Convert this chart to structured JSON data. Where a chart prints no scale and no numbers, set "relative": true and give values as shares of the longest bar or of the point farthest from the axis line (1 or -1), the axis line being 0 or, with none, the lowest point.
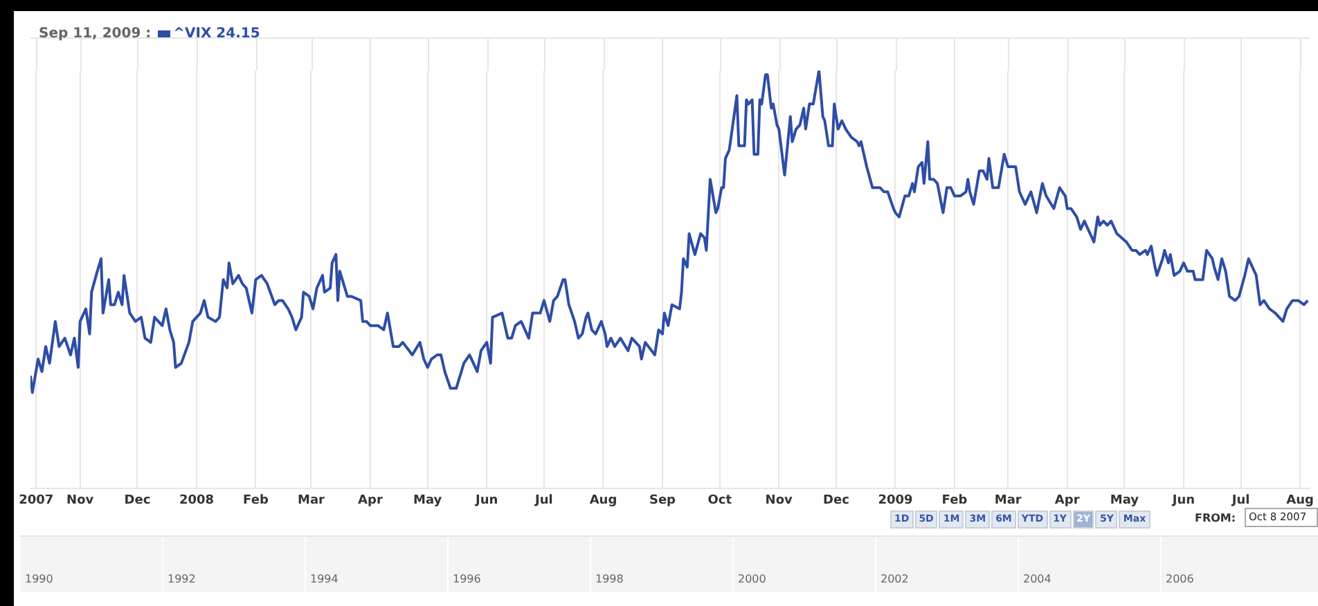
{
  "chart_data": {
    "type": "line",
    "title": "Sep 11, 2009 :",
    "relative": true,
    "grid": "x",
    "legend": "top left",
    "marker": "none",
    "line_style": "solid",
    "xlim": [
      "2007-10-06",
      "2009-08-06"
    ],
    "xticks": [
      {
        "value": "2007-10-09",
        "label": "2007"
      },
      {
        "value": "2007-11-01",
        "label": "Nov"
      },
      {
        "value": "2007-12-01",
        "label": "Dec"
      },
      {
        "value": "2008-01-01",
        "label": "2008"
      },
      {
        "value": "2008-02-01",
        "label": "Feb"
      },
      {
        "value": "2008-03-01",
        "label": "Mar"
      },
      {
        "value": "2008-04-01",
        "label": "Apr"
      },
      {
        "value": "2008-05-01",
        "label": "May"
      },
      {
        "value": "2008-06-01",
        "label": "Jun"
      },
      {
        "value": "2008-07-01",
        "label": "Jul"
      },
      {
        "value": "2008-08-01",
        "label": "Aug"
      },
      {
        "value": "2008-09-01",
        "label": "Sep"
      },
      {
        "value": "2008-10-01",
        "label": "Oct"
      },
      {
        "value": "2008-11-01",
        "label": "Nov"
      },
      {
        "value": "2008-12-01",
        "label": "Dec"
      },
      {
        "value": "2009-01-01",
        "label": "2009"
      },
      {
        "value": "2009-02-01",
        "label": "Feb"
      },
      {
        "value": "2009-03-01",
        "label": "Mar"
      },
      {
        "value": "2009-04-01",
        "label": "Apr"
      },
      {
        "value": "2009-05-01",
        "label": "May"
      },
      {
        "value": "2009-06-01",
        "label": "Jun"
      },
      {
        "value": "2009-07-01",
        "label": "Jul"
      },
      {
        "value": "2009-08-01",
        "label": "Aug"
      }
    ],
    "annotations": [
      "1D",
      "5D",
      "1M",
      "3M",
      "6M",
      "YTD",
      "1Y",
      "2Y",
      "5Y",
      "Max",
      "FROM:",
      "Oct 8 2007",
      "1990",
      "1992",
      "1994",
      "1996",
      "1998",
      "2000",
      "2002",
      "2004",
      "2006"
    ],
    "x": [
      "2007-10-06",
      "2007-10-07",
      "2007-10-10",
      "2007-10-12",
      "2007-10-14",
      "2007-10-16",
      "2007-10-19",
      "2007-10-21",
      "2007-10-24",
      "2007-10-27",
      "2007-10-29",
      "2007-10-31",
      "2007-11-01",
      "2007-11-04",
      "2007-11-06",
      "2007-11-07",
      "2007-11-10",
      "2007-11-12",
      "2007-11-13",
      "2007-11-16",
      "2007-11-17",
      "2007-11-19",
      "2007-11-21",
      "2007-11-23",
      "2007-11-24",
      "2007-11-27",
      "2007-11-30",
      "2007-12-03",
      "2007-12-05",
      "2007-12-08",
      "2007-12-10",
      "2007-12-14",
      "2007-12-16",
      "2007-12-18",
      "2007-12-20",
      "2007-12-21",
      "2007-12-24",
      "2007-12-28",
      "2007-12-30",
      "2008-01-03",
      "2008-01-05",
      "2008-01-07",
      "2008-01-11",
      "2008-01-13",
      "2008-01-15",
      "2008-01-17",
      "2008-01-18",
      "2008-01-20",
      "2008-01-23",
      "2008-01-25",
      "2008-01-27",
      "2008-01-30",
      "2008-02-01",
      "2008-02-04",
      "2008-02-07",
      "2008-02-11",
      "2008-02-13",
      "2008-02-15",
      "2008-02-18",
      "2008-02-20",
      "2008-02-22",
      "2008-02-25",
      "2008-02-26",
      "2008-02-29",
      "2008-03-02",
      "2008-03-04",
      "2008-03-07",
      "2008-03-08",
      "2008-03-11",
      "2008-03-12",
      "2008-03-14",
      "2008-03-15",
      "2008-03-16",
      "2008-03-20",
      "2008-03-22",
      "2008-03-27",
      "2008-03-28",
      "2008-03-30",
      "2008-04-01",
      "2008-04-05",
      "2008-04-08",
      "2008-04-10",
      "2008-04-13",
      "2008-04-16",
      "2008-04-18",
      "2008-04-23",
      "2008-04-27",
      "2008-04-29",
      "2008-05-01",
      "2008-05-03",
      "2008-05-06",
      "2008-05-08",
      "2008-05-10",
      "2008-05-13",
      "2008-05-16",
      "2008-05-20",
      "2008-05-23",
      "2008-05-25",
      "2008-05-27",
      "2008-05-29",
      "2008-06-01",
      "2008-06-03",
      "2008-06-04",
      "2008-06-09",
      "2008-06-12",
      "2008-06-14",
      "2008-06-16",
      "2008-06-19",
      "2008-06-23",
      "2008-06-25",
      "2008-06-29",
      "2008-07-01",
      "2008-07-04",
      "2008-07-06",
      "2008-07-08",
      "2008-07-11",
      "2008-07-12",
      "2008-07-14",
      "2008-07-17",
      "2008-07-19",
      "2008-07-21",
      "2008-07-23",
      "2008-07-24",
      "2008-07-26",
      "2008-07-28",
      "2008-07-30",
      "2008-07-31",
      "2008-08-02",
      "2008-08-03",
      "2008-08-05",
      "2008-08-07",
      "2008-08-10",
      "2008-08-14",
      "2008-08-16",
      "2008-08-20",
      "2008-08-21",
      "2008-08-23",
      "2008-08-28",
      "2008-08-30",
      "2008-09-01",
      "2008-09-02",
      "2008-09-04",
      "2008-09-06",
      "2008-09-10",
      "2008-09-11",
      "2008-09-12",
      "2008-09-14",
      "2008-09-15",
      "2008-09-18",
      "2008-09-21",
      "2008-09-23",
      "2008-09-24",
      "2008-09-26",
      "2008-09-29",
      "2008-09-30",
      "2008-10-02",
      "2008-10-03",
      "2008-10-04",
      "2008-10-06",
      "2008-10-10",
      "2008-10-11",
      "2008-10-14",
      "2008-10-15",
      "2008-10-16",
      "2008-10-18",
      "2008-10-19",
      "2008-10-21",
      "2008-10-22",
      "2008-10-23",
      "2008-10-25",
      "2008-10-26",
      "2008-10-28",
      "2008-10-29",
      "2008-10-31",
      "2008-11-01",
      "2008-11-04",
      "2008-11-07",
      "2008-11-08",
      "2008-11-10",
      "2008-11-12",
      "2008-11-14",
      "2008-11-15",
      "2008-11-17",
      "2008-11-19",
      "2008-11-22",
      "2008-11-24",
      "2008-11-25",
      "2008-11-27",
      "2008-11-29",
      "2008-11-30",
      "2008-12-02",
      "2008-12-04",
      "2008-12-06",
      "2008-12-09",
      "2008-12-12",
      "2008-12-13",
      "2008-12-14",
      "2008-12-17",
      "2008-12-20",
      "2008-12-24",
      "2008-12-26",
      "2008-12-28",
      "2008-12-31",
      "2009-01-01",
      "2009-01-03",
      "2009-01-06",
      "2009-01-08",
      "2009-01-10",
      "2009-01-11",
      "2009-01-13",
      "2009-01-15",
      "2009-01-16",
      "2009-01-18",
      "2009-01-19",
      "2009-01-21",
      "2009-01-23",
      "2009-01-26",
      "2009-01-28",
      "2009-01-30",
      "2009-02-01",
      "2009-02-04",
      "2009-02-07",
      "2009-02-08",
      "2009-02-09",
      "2009-02-11",
      "2009-02-14",
      "2009-02-16",
      "2009-02-18",
      "2009-02-19",
      "2009-02-21",
      "2009-02-24",
      "2009-02-27",
      "2009-03-01",
      "2009-03-03",
      "2009-03-05",
      "2009-03-07",
      "2009-03-10",
      "2009-03-13",
      "2009-03-16",
      "2009-03-19",
      "2009-03-21",
      "2009-03-25",
      "2009-03-28",
      "2009-03-31",
      "2009-04-01",
      "2009-04-03",
      "2009-04-06",
      "2009-04-08",
      "2009-04-10",
      "2009-04-13",
      "2009-04-15",
      "2009-04-17",
      "2009-04-18",
      "2009-04-20",
      "2009-04-22",
      "2009-04-24",
      "2009-04-27",
      "2009-05-02",
      "2009-05-05",
      "2009-05-07",
      "2009-05-09",
      "2009-05-12",
      "2009-05-13",
      "2009-05-15",
      "2009-05-17",
      "2009-05-18",
      "2009-05-21",
      "2009-05-22",
      "2009-05-24",
      "2009-05-25",
      "2009-05-27",
      "2009-05-30",
      "2009-06-01",
      "2009-06-03",
      "2009-06-06",
      "2009-06-07",
      "2009-06-11",
      "2009-06-13",
      "2009-06-16",
      "2009-06-17",
      "2009-06-19",
      "2009-06-21",
      "2009-06-23",
      "2009-06-25",
      "2009-06-28",
      "2009-06-30",
      "2009-07-03",
      "2009-07-05",
      "2009-07-09",
      "2009-07-11",
      "2009-07-13",
      "2009-07-16",
      "2009-07-19",
      "2009-07-23",
      "2009-07-25",
      "2009-07-28",
      "2009-07-31",
      "2009-08-03",
      "2009-08-05"
    ],
    "series": [
      {
        "name": "^VIX 24.15",
        "color": "#2e4da6",
        "values": [
          0.27,
          0.23,
          0.31,
          0.28,
          0.34,
          0.3,
          0.4,
          0.34,
          0.36,
          0.32,
          0.36,
          0.29,
          0.4,
          0.43,
          0.37,
          0.47,
          0.52,
          0.55,
          0.42,
          0.5,
          0.44,
          0.44,
          0.47,
          0.44,
          0.51,
          0.42,
          0.4,
          0.41,
          0.36,
          0.35,
          0.41,
          0.39,
          0.43,
          0.38,
          0.35,
          0.29,
          0.3,
          0.35,
          0.4,
          0.42,
          0.45,
          0.41,
          0.4,
          0.41,
          0.5,
          0.48,
          0.54,
          0.49,
          0.51,
          0.49,
          0.48,
          0.42,
          0.5,
          0.51,
          0.49,
          0.44,
          0.45,
          0.45,
          0.43,
          0.41,
          0.38,
          0.41,
          0.47,
          0.46,
          0.43,
          0.48,
          0.51,
          0.47,
          0.48,
          0.54,
          0.56,
          0.45,
          0.52,
          0.46,
          0.46,
          0.45,
          0.4,
          0.4,
          0.39,
          0.39,
          0.38,
          0.42,
          0.34,
          0.34,
          0.35,
          0.32,
          0.35,
          0.31,
          0.29,
          0.31,
          0.32,
          0.32,
          0.28,
          0.24,
          0.24,
          0.3,
          0.32,
          0.3,
          0.28,
          0.33,
          0.35,
          0.3,
          0.41,
          0.42,
          0.36,
          0.36,
          0.39,
          0.4,
          0.36,
          0.42,
          0.42,
          0.45,
          0.4,
          0.45,
          0.46,
          0.5,
          0.5,
          0.44,
          0.4,
          0.36,
          0.37,
          0.41,
          0.42,
          0.38,
          0.37,
          0.39,
          0.4,
          0.37,
          0.34,
          0.36,
          0.34,
          0.36,
          0.33,
          0.36,
          0.34,
          0.31,
          0.35,
          0.32,
          0.38,
          0.37,
          0.42,
          0.39,
          0.44,
          0.43,
          0.47,
          0.55,
          0.53,
          0.61,
          0.56,
          0.61,
          0.6,
          0.57,
          0.74,
          0.66,
          0.67,
          0.72,
          0.72,
          0.79,
          0.81,
          0.94,
          0.82,
          0.82,
          0.93,
          0.92,
          0.93,
          0.8,
          0.8,
          0.93,
          0.92,
          0.99,
          0.99,
          0.91,
          0.92,
          0.87,
          0.86,
          0.75,
          0.89,
          0.83,
          0.86,
          0.87,
          0.91,
          0.86,
          0.92,
          0.92,
          1,
          0.89,
          0.88,
          0.82,
          0.82,
          0.92,
          0.86,
          0.88,
          0.86,
          0.84,
          0.83,
          0.82,
          0.83,
          0.77,
          0.72,
          0.72,
          0.71,
          0.71,
          0.67,
          0.66,
          0.65,
          0.7,
          0.7,
          0.73,
          0.71,
          0.77,
          0.78,
          0.73,
          0.83,
          0.74,
          0.74,
          0.73,
          0.66,
          0.72,
          0.72,
          0.7,
          0.7,
          0.71,
          0.74,
          0.71,
          0.68,
          0.76,
          0.76,
          0.74,
          0.79,
          0.72,
          0.72,
          0.8,
          0.77,
          0.77,
          0.77,
          0.71,
          0.68,
          0.71,
          0.66,
          0.73,
          0.7,
          0.67,
          0.72,
          0.7,
          0.67,
          0.67,
          0.65,
          0.62,
          0.64,
          0.61,
          0.59,
          0.65,
          0.63,
          0.64,
          0.63,
          0.64,
          0.61,
          0.59,
          0.57,
          0.57,
          0.56,
          0.57,
          0.56,
          0.58,
          0.53,
          0.51,
          0.55,
          0.57,
          0.54,
          0.56,
          0.51,
          0.52,
          0.54,
          0.52,
          0.52,
          0.5,
          0.5,
          0.57,
          0.55,
          0.53,
          0.5,
          0.55,
          0.52,
          0.46,
          0.45,
          0.46,
          0.51,
          0.55,
          0.51,
          0.44,
          0.45,
          0.43,
          0.42,
          0.4,
          0.43,
          0.45,
          0.45,
          0.44,
          0.45
        ]
      }
    ]
  }
}
